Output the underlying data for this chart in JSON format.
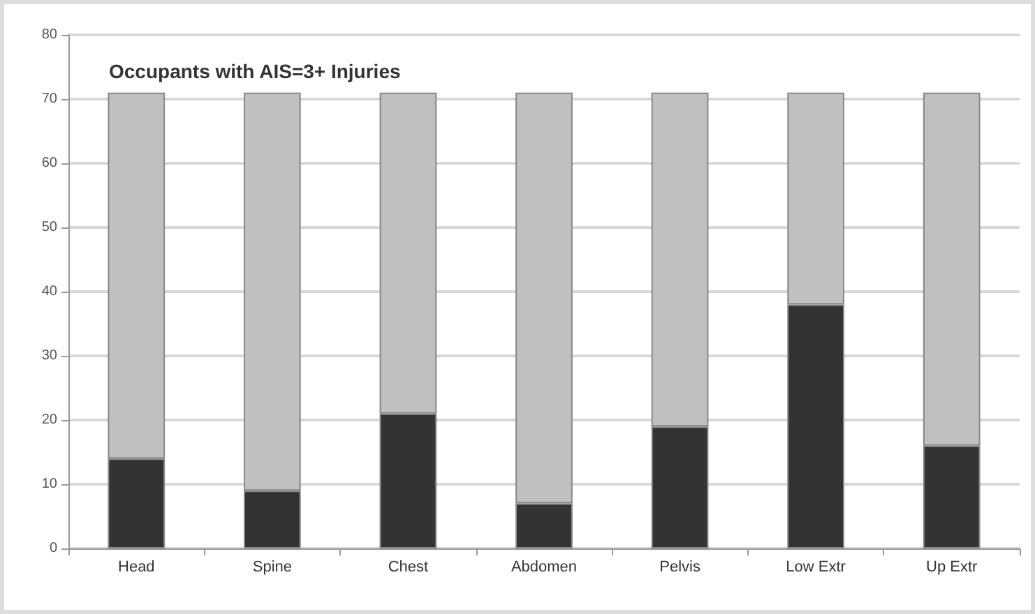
{
  "chart_data": {
    "type": "bar",
    "title": "Occupants with AIS=3+ Injuries",
    "categories": [
      "Head",
      "Spine",
      "Chest",
      "Abdomen",
      "Pelvis",
      "Low Extr",
      "Up Extr"
    ],
    "stacked": true,
    "series": [
      {
        "color": "#333333",
        "values": [
          14,
          9,
          21,
          7,
          19,
          38,
          16
        ]
      },
      {
        "color": "#c0c0c0",
        "values": [
          57,
          62,
          50,
          64,
          52,
          33,
          55
        ]
      }
    ],
    "ylim": [
      0,
      80
    ],
    "yticks": [
      0,
      10,
      20,
      30,
      40,
      50,
      60,
      70,
      80
    ],
    "grid": "y"
  }
}
